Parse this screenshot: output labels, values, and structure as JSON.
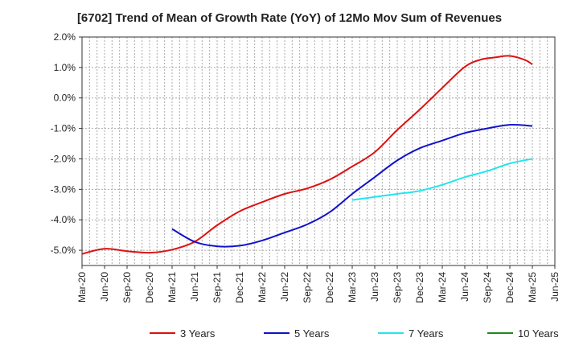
{
  "chart_data": {
    "type": "line",
    "title": "[6702]  Trend of Mean of Growth Rate (YoY) of 12Mo Mov Sum of Revenues",
    "xlabel": "",
    "ylabel": "",
    "ylim": [
      -5.5,
      2.0
    ],
    "y_ticks": [
      -5.0,
      -4.0,
      -3.0,
      -2.0,
      -1.0,
      0.0,
      1.0,
      2.0
    ],
    "y_tick_labels": [
      "-5.0%",
      "-4.0%",
      "-3.0%",
      "-2.0%",
      "-1.0%",
      "0.0%",
      "1.0%",
      "2.0%"
    ],
    "x_tick_labels": [
      "Mar-20",
      "Jun-20",
      "Sep-20",
      "Dec-20",
      "Mar-21",
      "Jun-21",
      "Sep-21",
      "Dec-21",
      "Mar-22",
      "Jun-22",
      "Sep-22",
      "Dec-22",
      "Mar-23",
      "Jun-23",
      "Sep-23",
      "Dec-23",
      "Mar-24",
      "Jun-24",
      "Sep-24",
      "Dec-24",
      "Mar-25",
      "Jun-25"
    ],
    "x_range": [
      0,
      63
    ],
    "grid": true,
    "legend_position": "bottom",
    "series": [
      {
        "name": "3 Years",
        "color": "#dd1111",
        "x": [
          0,
          3,
          6,
          9,
          12,
          15,
          18,
          21,
          24,
          27,
          30,
          33,
          36,
          39,
          42,
          45,
          48,
          51,
          53,
          55,
          57,
          59,
          60
        ],
        "values": [
          -5.12,
          -4.95,
          -5.03,
          -5.08,
          -4.98,
          -4.72,
          -4.18,
          -3.72,
          -3.42,
          -3.15,
          -2.97,
          -2.68,
          -2.25,
          -1.78,
          -1.05,
          -0.38,
          0.33,
          1.02,
          1.25,
          1.33,
          1.38,
          1.25,
          1.1
        ]
      },
      {
        "name": "5 Years",
        "color": "#1111cc",
        "x": [
          12,
          15,
          18,
          21,
          24,
          27,
          30,
          33,
          36,
          39,
          42,
          45,
          48,
          51,
          54,
          57,
          60
        ],
        "values": [
          -4.3,
          -4.72,
          -4.87,
          -4.85,
          -4.68,
          -4.42,
          -4.15,
          -3.75,
          -3.15,
          -2.6,
          -2.05,
          -1.65,
          -1.4,
          -1.15,
          -1.0,
          -0.88,
          -0.92
        ]
      },
      {
        "name": "7 Years",
        "color": "#22e5ee",
        "x": [
          36,
          39,
          42,
          45,
          48,
          51,
          54,
          57,
          60
        ],
        "values": [
          -3.35,
          -3.25,
          -3.15,
          -3.05,
          -2.85,
          -2.6,
          -2.4,
          -2.15,
          -2.0
        ]
      },
      {
        "name": "10 Years",
        "color": "#228822",
        "x": [],
        "values": []
      }
    ]
  }
}
